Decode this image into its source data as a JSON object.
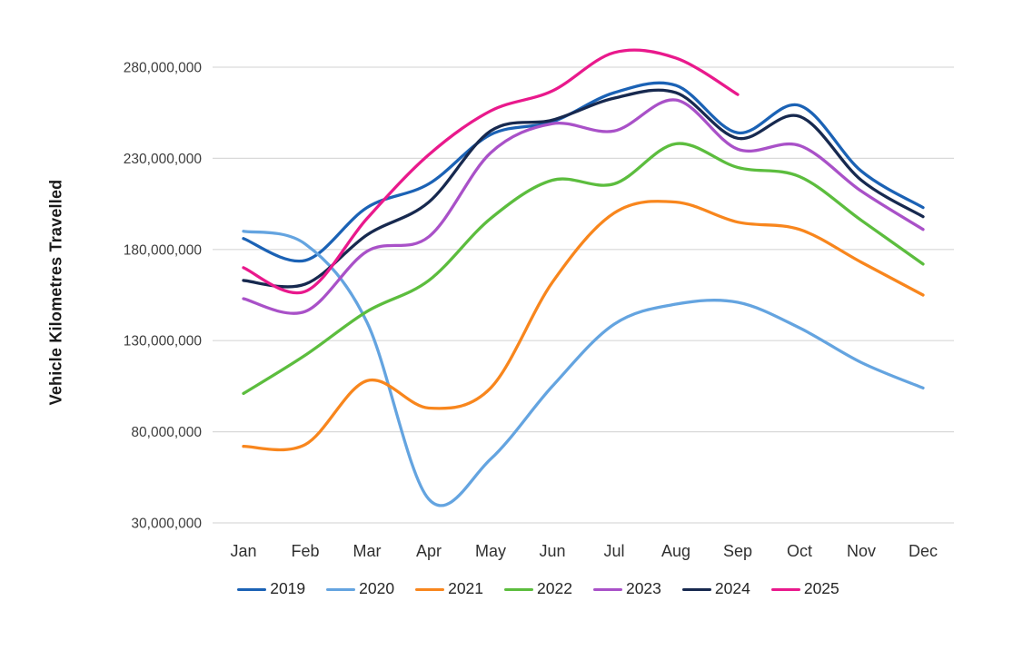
{
  "chart_data": {
    "type": "line",
    "title": "",
    "xlabel": "",
    "ylabel": "Vehicle Kilometres Travelled",
    "categories": [
      "Jan",
      "Feb",
      "Mar",
      "Apr",
      "May",
      "Jun",
      "Jul",
      "Aug",
      "Sep",
      "Oct",
      "Nov",
      "Dec"
    ],
    "ylim": [
      30000000,
      280000000
    ],
    "ytick_step": 50000000,
    "ytick_labels": [
      "30,000,000",
      "80,000,000",
      "130,000,000",
      "180,000,000",
      "230,000,000",
      "280,000,000"
    ],
    "grid": true,
    "gridline_color": "#d9d9d9",
    "line_style": "smooth",
    "legend_position": "bottom",
    "series": [
      {
        "name": "2019",
        "color": "#1b62b5",
        "values": [
          186000000,
          174000000,
          203000000,
          216000000,
          243000000,
          250000000,
          266000000,
          270000000,
          244000000,
          259000000,
          223000000,
          203000000
        ]
      },
      {
        "name": "2020",
        "color": "#64a4e0",
        "values": [
          190000000,
          183000000,
          140000000,
          43000000,
          65000000,
          105000000,
          139000000,
          150000000,
          151000000,
          137000000,
          118000000,
          104000000
        ]
      },
      {
        "name": "2021",
        "color": "#f8861d",
        "values": [
          72000000,
          73000000,
          108000000,
          93000000,
          104000000,
          162000000,
          200000000,
          206000000,
          195000000,
          191000000,
          173000000,
          155000000
        ]
      },
      {
        "name": "2022",
        "color": "#5cbd3e",
        "values": [
          101000000,
          122000000,
          146000000,
          163000000,
          197000000,
          218000000,
          216000000,
          238000000,
          225000000,
          220000000,
          196000000,
          172000000
        ]
      },
      {
        "name": "2023",
        "color": "#a951c8",
        "values": [
          153000000,
          146000000,
          179000000,
          187000000,
          233000000,
          249000000,
          245000000,
          262000000,
          235000000,
          237000000,
          212000000,
          191000000
        ]
      },
      {
        "name": "2024",
        "color": "#17294f",
        "values": [
          163000000,
          161000000,
          188000000,
          206000000,
          245000000,
          251000000,
          263000000,
          266000000,
          241000000,
          253000000,
          218000000,
          198000000
        ]
      },
      {
        "name": "2025",
        "color": "#e9198c",
        "values": [
          170000000,
          157000000,
          197000000,
          232000000,
          256000000,
          267000000,
          288000000,
          285000000,
          265000000,
          null,
          null,
          null
        ]
      }
    ]
  }
}
